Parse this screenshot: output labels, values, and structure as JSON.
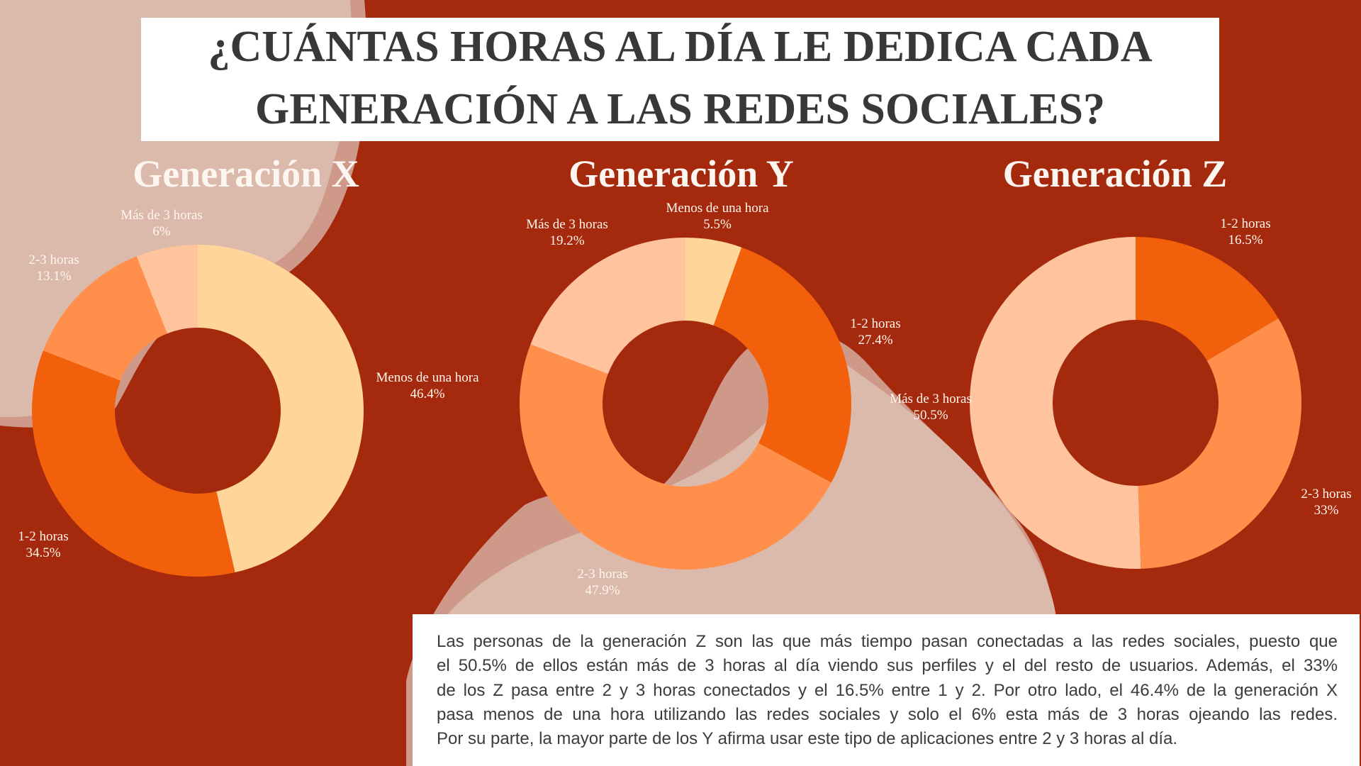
{
  "title": {
    "line1": "¿CUÁNTAS HORAS AL DÍA LE DEDICA CADA",
    "line2": "GENERACIÓN A LAS REDES SOCIALES?"
  },
  "colors": {
    "background": "#a52a0d",
    "menos_de_una_hora": "#ffd59a",
    "uno_dos_horas": "#f2600b",
    "dos_tres_horas": "#ff8f4b",
    "mas_de_tres_horas": "#ffc39e",
    "blob_light": "#dbb9ab",
    "blob_dark": "#cf998a"
  },
  "chart_data": [
    {
      "type": "pie",
      "style": "donut",
      "title": "Generación X",
      "start_angle": "top, clockwise",
      "categories": [
        "Menos de una hora",
        "1-2 horas",
        "2-3 horas",
        "Más de 3 horas"
      ],
      "values": [
        46.4,
        34.5,
        13.1,
        6
      ],
      "value_labels": [
        "46.4%",
        "34.5%",
        "13.1%",
        "6%"
      ],
      "unit": "%"
    },
    {
      "type": "pie",
      "style": "donut",
      "title": "Generación Y",
      "start_angle": "top, clockwise",
      "categories": [
        "Menos de una hora",
        "1-2 horas",
        "2-3 horas",
        "Más de 3 horas"
      ],
      "values": [
        5.5,
        27.4,
        47.9,
        19.2
      ],
      "value_labels": [
        "5.5%",
        "27.4%",
        "47.9%",
        "19.2%"
      ],
      "unit": "%"
    },
    {
      "type": "pie",
      "style": "donut",
      "title": "Generación Z",
      "start_angle": "top, clockwise",
      "categories": [
        "1-2 horas",
        "2-3 horas",
        "Más de 3 horas"
      ],
      "values": [
        16.5,
        33,
        50.5
      ],
      "value_labels": [
        "16.5%",
        "33%",
        "50.5%"
      ],
      "unit": "%"
    }
  ],
  "summary": {
    "lines": [
      "Las personas de la generación Z son las que más tiempo pasan conectadas a las redes sociales, puesto que",
      "el 50.5% de ellos están más de 3 horas al día viendo sus perfiles y el del resto de usuarios. Además, el 33%",
      "de los Z pasa entre 2 y 3 horas conectados y el 16.5% entre 1 y 2. Por otro lado, el 46.4% de la generación X",
      "pasa menos de una hora utilizando las redes sociales y solo el 6% esta más de 3 horas ojeando las redes.",
      "Por su parte, la mayor parte de los Y afirma usar este tipo de aplicaciones entre 2 y 3 horas al día."
    ]
  }
}
